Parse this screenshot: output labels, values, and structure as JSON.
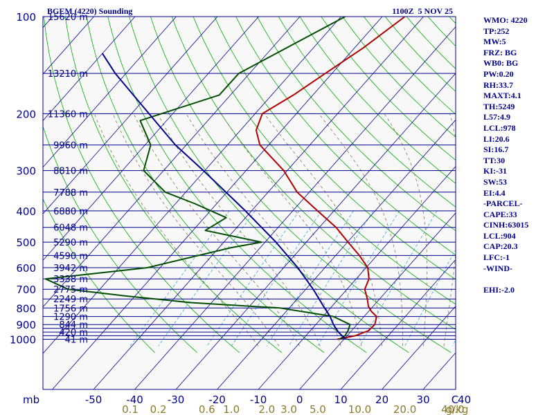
{
  "chart_data": {
    "type": "line",
    "title": "BGEM (4220) Sounding",
    "datetime": "1100Z  5 NOV 25",
    "x_axis": {
      "unit_label": "C",
      "temperature_ticks": [
        "-50",
        "-40",
        "-30",
        "-20",
        "-10",
        "0",
        "10",
        "20",
        "30",
        "40"
      ],
      "temperature_values": [
        -50,
        -40,
        -30,
        -20,
        -10,
        0,
        10,
        20,
        30,
        40
      ],
      "mixing_ratio_unit": "g/kg",
      "mixing_ratio_ticks": [
        "0.1",
        "0.2",
        "0.6",
        "1.0",
        "2.0",
        "3.0",
        "5.0",
        "10.0",
        "20.0",
        "40.0"
      ]
    },
    "y_axis": {
      "unit_label": "mb",
      "pressure_ticks": [
        "100",
        "200",
        "300",
        "400",
        "500",
        "600",
        "700",
        "800",
        "900",
        "1000"
      ],
      "pressure_values": [
        100,
        200,
        300,
        400,
        500,
        600,
        700,
        800,
        900,
        1000
      ],
      "log_scale": true,
      "range": [
        1050,
        100
      ]
    },
    "height_labels": [
      {
        "p": 100,
        "text": "15620 m"
      },
      {
        "p": 150,
        "text": "13210 m"
      },
      {
        "p": 200,
        "text": "11360 m"
      },
      {
        "p": 250,
        "text": "9960 m"
      },
      {
        "p": 300,
        "text": "8810 m"
      },
      {
        "p": 350,
        "text": "7788 m"
      },
      {
        "p": 400,
        "text": "6880 m"
      },
      {
        "p": 450,
        "text": "6048 m"
      },
      {
        "p": 500,
        "text": "5290 m"
      },
      {
        "p": 550,
        "text": "4590 m"
      },
      {
        "p": 600,
        "text": "3942 m"
      },
      {
        "p": 650,
        "text": "3338 m"
      },
      {
        "p": 700,
        "text": "2775 m"
      },
      {
        "p": 750,
        "text": "2249 m"
      },
      {
        "p": 800,
        "text": "1756 m"
      },
      {
        "p": 850,
        "text": "1290 m"
      },
      {
        "p": 900,
        "text": "844 m"
      },
      {
        "p": 950,
        "text": "420 m"
      },
      {
        "p": 1000,
        "text": "41 m"
      }
    ],
    "isobars": [
      100,
      150,
      200,
      250,
      300,
      350,
      400,
      450,
      500,
      550,
      600,
      650,
      700,
      750,
      800,
      850,
      900,
      925,
      950,
      975,
      1000
    ],
    "series": [
      {
        "name": "Temperature",
        "color": "#b00000",
        "points": [
          {
            "p": 100,
            "t": -54.5
          },
          {
            "p": 125,
            "t": -57.0
          },
          {
            "p": 150,
            "t": -60.0
          },
          {
            "p": 175,
            "t": -62.5
          },
          {
            "p": 200,
            "t": -65.5
          },
          {
            "p": 225,
            "t": -63.0
          },
          {
            "p": 250,
            "t": -58.5
          },
          {
            "p": 300,
            "t": -46.5
          },
          {
            "p": 350,
            "t": -38.0
          },
          {
            "p": 400,
            "t": -28.5
          },
          {
            "p": 450,
            "t": -20.0
          },
          {
            "p": 500,
            "t": -13.5
          },
          {
            "p": 550,
            "t": -7.5
          },
          {
            "p": 600,
            "t": -2.5
          },
          {
            "p": 650,
            "t": 0.5
          },
          {
            "p": 700,
            "t": 2.0
          },
          {
            "p": 750,
            "t": 5.0
          },
          {
            "p": 790,
            "t": 7.0
          },
          {
            "p": 820,
            "t": 9.0
          },
          {
            "p": 850,
            "t": 11.5
          },
          {
            "p": 900,
            "t": 13.0
          },
          {
            "p": 940,
            "t": 13.0
          },
          {
            "p": 975,
            "t": 11.0
          },
          {
            "p": 1000,
            "t": 7.5
          }
        ]
      },
      {
        "name": "Dewpoint",
        "color": "#004d00",
        "points": [
          {
            "p": 100,
            "t": -69.0
          },
          {
            "p": 150,
            "t": -81.0
          },
          {
            "p": 175,
            "t": -80.5
          },
          {
            "p": 210,
            "t": -93.5
          },
          {
            "p": 250,
            "t": -85.0
          },
          {
            "p": 300,
            "t": -80.5
          },
          {
            "p": 350,
            "t": -70.0
          },
          {
            "p": 380,
            "t": -60.0
          },
          {
            "p": 420,
            "t": -49.0
          },
          {
            "p": 460,
            "t": -51.0
          },
          {
            "p": 500,
            "t": -34.5
          },
          {
            "p": 520,
            "t": -40.5
          },
          {
            "p": 600,
            "t": -56.0
          },
          {
            "p": 650,
            "t": -78.0
          },
          {
            "p": 700,
            "t": -70.0
          },
          {
            "p": 735,
            "t": -54.0
          },
          {
            "p": 770,
            "t": -37.0
          },
          {
            "p": 800,
            "t": -14.0
          },
          {
            "p": 850,
            "t": 1.0
          },
          {
            "p": 900,
            "t": 7.0
          },
          {
            "p": 940,
            "t": 8.0
          },
          {
            "p": 975,
            "t": 8.5
          },
          {
            "p": 1000,
            "t": 8.0
          }
        ]
      },
      {
        "name": "Parcel",
        "color": "#00008b",
        "points": [
          {
            "p": 1000,
            "t": 9.5
          },
          {
            "p": 950,
            "t": 6.0
          },
          {
            "p": 904,
            "t": 3.2
          },
          {
            "p": 850,
            "t": 0.2
          },
          {
            "p": 800,
            "t": -3.2
          },
          {
            "p": 700,
            "t": -10.5
          },
          {
            "p": 600,
            "t": -19.5
          },
          {
            "p": 500,
            "t": -31.0
          },
          {
            "p": 400,
            "t": -46.0
          },
          {
            "p": 300,
            "t": -66.0
          },
          {
            "p": 250,
            "t": -79.0
          },
          {
            "p": 200,
            "t": -93.0
          },
          {
            "p": 150,
            "t": -111.0
          },
          {
            "p": 130,
            "t": -119.0
          }
        ]
      }
    ],
    "grid": true,
    "colors": {
      "isobar": "#00008b",
      "isotherm": "#00008b",
      "dry_adiabat": "#00aa00",
      "moist_adiabat": "#7a7a50",
      "mixing_ratio": "#3aa6d6",
      "axis_tick_text": "#00008b",
      "mixing_ratio_text": "#8a7a2a"
    }
  },
  "indices": [
    {
      "label": "WMO: 4220"
    },
    {
      "label": "TP:252"
    },
    {
      "label": "MW:5"
    },
    {
      "label": "FRZ: BG"
    },
    {
      "label": "WB0: BG"
    },
    {
      "label": "PW:0.20"
    },
    {
      "label": "RH:33.7"
    },
    {
      "label": "MAXT:4.1"
    },
    {
      "label": "TH:5249"
    },
    {
      "label": "L57:4.9"
    },
    {
      "label": "LCL:978"
    },
    {
      "label": "LI:20.6"
    },
    {
      "label": "SI:16.7"
    },
    {
      "label": "TT:30"
    },
    {
      "label": "KI:-31"
    },
    {
      "label": "SW:53"
    },
    {
      "label": "EI:4.4"
    },
    {
      "label": "-PARCEL-"
    },
    {
      "label": "CAPE:33"
    },
    {
      "label": "CINH:63015"
    },
    {
      "label": "LCL:904"
    },
    {
      "label": "CAP:20.3"
    },
    {
      "label": "LFC:-1"
    },
    {
      "label": "-WIND-"
    },
    {
      "label": ""
    },
    {
      "label": "EHI:-2.0"
    }
  ]
}
